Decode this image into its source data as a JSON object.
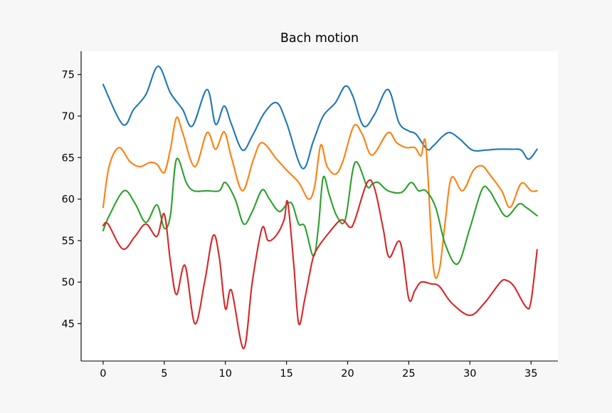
{
  "chart_data": {
    "type": "line",
    "title": "Bach motion",
    "xlabel": "",
    "ylabel": "",
    "xlim": [
      -1.8,
      37.2
    ],
    "ylim": [
      40.5,
      77.8
    ],
    "xticks": [
      0,
      5,
      10,
      15,
      20,
      25,
      30,
      35
    ],
    "yticks": [
      45,
      50,
      55,
      60,
      65,
      70,
      75
    ],
    "grid": false,
    "legend": "none",
    "spines": [
      "left",
      "bottom"
    ],
    "series": [
      {
        "color": "#1f77b4",
        "x": [
          0,
          1.6,
          2.5,
          3.5,
          4.5,
          5.5,
          6.5,
          7.3,
          8.5,
          9.2,
          9.9,
          10.5,
          11.4,
          12.2,
          13.2,
          14.2,
          15.0,
          16.3,
          17.2,
          18.0,
          19.0,
          19.8,
          20.4,
          21.3,
          22.2,
          23.3,
          24.2,
          25.0,
          25.6,
          26.5,
          27.0,
          27.8,
          28.4,
          29.2,
          30.2,
          31.3,
          32.2,
          33.4,
          34.2,
          34.8,
          35.5
        ],
        "y": [
          73.8,
          69.0,
          70.8,
          72.6,
          76.0,
          72.8,
          70.8,
          68.8,
          73.2,
          69.0,
          71.2,
          69.0,
          65.9,
          67.6,
          70.4,
          71.6,
          69.2,
          63.7,
          67.0,
          70.0,
          71.6,
          73.6,
          72.5,
          68.8,
          70.2,
          73.2,
          69.2,
          68.2,
          67.8,
          66.0,
          66.4,
          67.6,
          68.0,
          67.2,
          65.9,
          65.9,
          66.0,
          66.0,
          65.9,
          64.8,
          66.0
        ]
      },
      {
        "color": "#ff7f0e",
        "x": [
          0,
          0.5,
          1.3,
          2.2,
          3.0,
          3.8,
          4.4,
          5.0,
          5.5,
          6.0,
          6.5,
          7.5,
          8.5,
          9.2,
          9.9,
          10.5,
          11.4,
          12.3,
          13.0,
          14.2,
          15.0,
          16.0,
          16.8,
          17.3,
          17.8,
          18.3,
          19.0,
          19.6,
          20.5,
          21.2,
          22.0,
          23.3,
          24.0,
          24.8,
          25.5,
          26.0,
          26.4,
          27.0,
          27.5,
          28.0,
          28.5,
          29.4,
          30.3,
          31.0,
          31.6,
          32.6,
          33.3,
          34.2,
          35.0,
          35.5
        ],
        "y": [
          59.0,
          64.0,
          66.2,
          64.5,
          63.9,
          64.4,
          64.2,
          63.2,
          66.0,
          69.8,
          68.0,
          63.9,
          68.0,
          66.0,
          68.1,
          65.0,
          61.0,
          64.8,
          66.8,
          64.8,
          63.5,
          62.0,
          60.0,
          61.5,
          66.5,
          64.0,
          63.0,
          64.5,
          68.8,
          67.8,
          65.3,
          68.0,
          66.8,
          66.2,
          66.2,
          65.2,
          66.5,
          52.0,
          51.5,
          57.5,
          62.6,
          61.0,
          63.5,
          64.0,
          63.0,
          61.0,
          59.0,
          61.9,
          61.0,
          61.0
        ]
      },
      {
        "color": "#2ca02c",
        "x": [
          0,
          0.5,
          1.7,
          2.6,
          3.5,
          4.4,
          5.0,
          5.5,
          6.0,
          6.8,
          7.4,
          8.5,
          9.5,
          10.0,
          10.8,
          11.5,
          12.2,
          13.0,
          13.6,
          14.4,
          15.1,
          15.5,
          16.0,
          16.5,
          17.2,
          17.6,
          18.0,
          18.5,
          19.1,
          19.8,
          20.6,
          21.6,
          22.0,
          22.5,
          23.3,
          24.4,
          25.2,
          25.8,
          26.4,
          27.2,
          28.0,
          29.0,
          30.0,
          31.0,
          31.6,
          32.2,
          33.0,
          34.0,
          34.6,
          35.5
        ],
        "y": [
          56.2,
          58.0,
          61.0,
          59.5,
          57.2,
          59.3,
          56.5,
          58.0,
          64.8,
          62.0,
          61.0,
          61.0,
          61.0,
          62.0,
          60.0,
          57.0,
          58.5,
          61.1,
          60.0,
          58.5,
          59.5,
          59.3,
          57.0,
          56.7,
          53.1,
          56.5,
          62.6,
          60.5,
          58.0,
          57.5,
          64.4,
          61.5,
          61.8,
          62.0,
          61.0,
          60.8,
          62.0,
          61.0,
          61.0,
          59.0,
          54.5,
          52.2,
          56.5,
          61.2,
          61.0,
          59.5,
          57.9,
          59.4,
          59.0,
          58.0
        ]
      },
      {
        "color": "#d62728",
        "x": [
          0,
          0.4,
          1.6,
          2.6,
          3.5,
          4.4,
          5.0,
          5.5,
          6.0,
          6.7,
          7.5,
          8.3,
          9.0,
          9.5,
          10.0,
          10.5,
          11.5,
          12.2,
          13.0,
          13.5,
          14.2,
          14.8,
          15.1,
          15.6,
          16.0,
          16.5,
          17.1,
          17.5,
          18.5,
          19.5,
          20.2,
          20.6,
          21.6,
          22.2,
          22.9,
          23.4,
          24.3,
          25.0,
          25.5,
          26.0,
          26.8,
          27.5,
          28.5,
          30.0,
          31.2,
          32.5,
          33.0,
          33.6,
          34.6,
          35.0,
          35.5
        ],
        "y": [
          56.8,
          57.0,
          54.0,
          55.5,
          57.0,
          55.5,
          58.2,
          52.5,
          48.5,
          52.0,
          45.0,
          50.0,
          55.6,
          53.0,
          46.8,
          49.0,
          42.0,
          50.0,
          56.5,
          55.0,
          55.7,
          57.5,
          59.6,
          52.0,
          45.0,
          48.0,
          52.5,
          54.0,
          56.0,
          57.5,
          56.6,
          57.5,
          62.0,
          61.3,
          56.5,
          53.0,
          54.8,
          48.0,
          49.0,
          50.0,
          49.8,
          49.5,
          47.5,
          46.0,
          47.5,
          50.0,
          50.2,
          49.5,
          47.0,
          47.7,
          53.9
        ]
      }
    ]
  }
}
